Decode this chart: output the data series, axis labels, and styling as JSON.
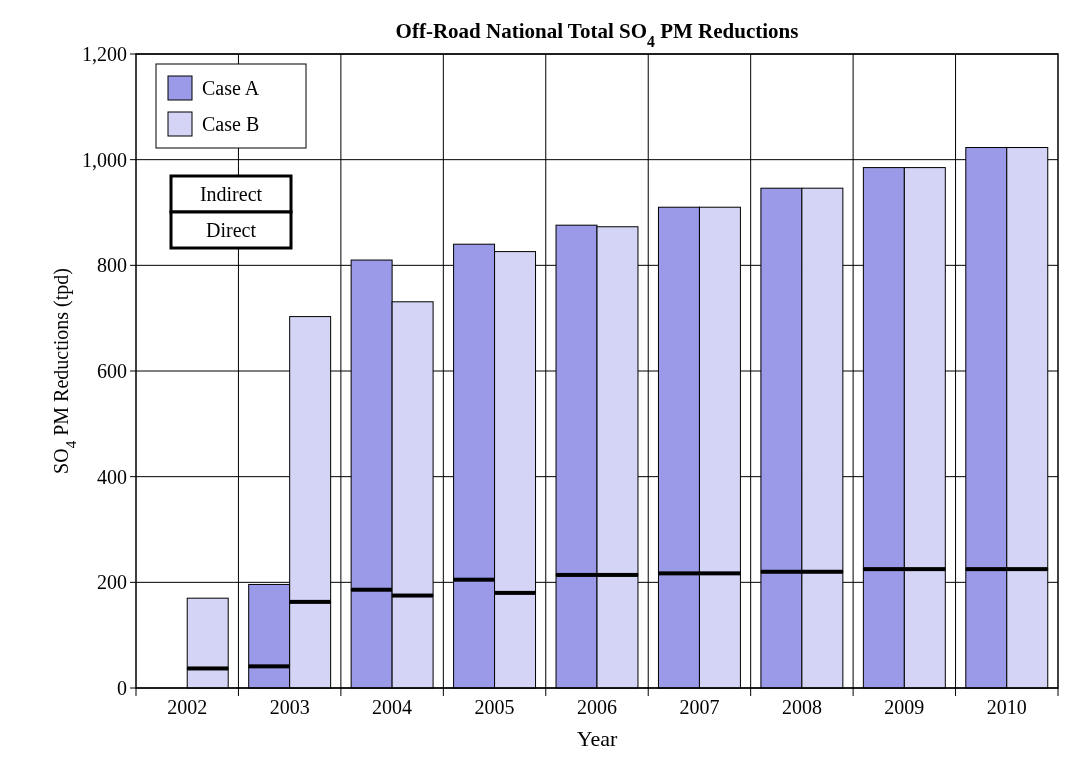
{
  "chart_data": [
    {
      "type": "bar",
      "stacked": true,
      "title": "Off-Road National Total SO$_{4}$ PM Reductions",
      "xlabel": "Year",
      "ylabel": "SO$_{4}$ PM Reductions (tpd)",
      "categories": [
        "2002",
        "2003",
        "2004",
        "2005",
        "2006",
        "2007",
        "2008",
        "2009",
        "2010"
      ],
      "series": [
        {
          "name": "Case A",
          "color": "#9a9ae8",
          "values": [
            0,
            41,
            186,
            205,
            214,
            217,
            220,
            225,
            225
          ]
        },
        {
          "color": "#9a9ae8",
          "values": [
            0,
            155,
            624,
            635,
            662,
            693,
            726,
            760,
            798
          ]
        }
      ],
      "ylim": [
        0,
        1200
      ],
      "yticks": [
        0,
        200,
        400,
        600,
        800,
        {
          "value": 1000,
          "label": "1,000"
        },
        {
          "value": 1200,
          "label": "1,200"
        }
      ],
      "grid": true,
      "legend": "top left",
      "annotations": [
        "Indirect",
        "Direct"
      ]
    },
    {
      "type": "bar",
      "stacked": true,
      "categories": [
        "2002",
        "2003",
        "2004",
        "2005",
        "2006",
        "2007",
        "2008",
        "2009",
        "2010"
      ],
      "series": [
        {
          "name": "Case B",
          "color": "#d4d4f6",
          "values": [
            37,
            163,
            175,
            180,
            214,
            217,
            220,
            225,
            225
          ]
        },
        {
          "color": "#d4d4f6",
          "values": [
            133,
            540,
            556,
            646,
            659,
            693,
            726,
            760,
            798
          ]
        }
      ],
      "ylim": [
        0,
        1200
      ],
      "tick_labels": false,
      "legend": "top left"
    }
  ]
}
